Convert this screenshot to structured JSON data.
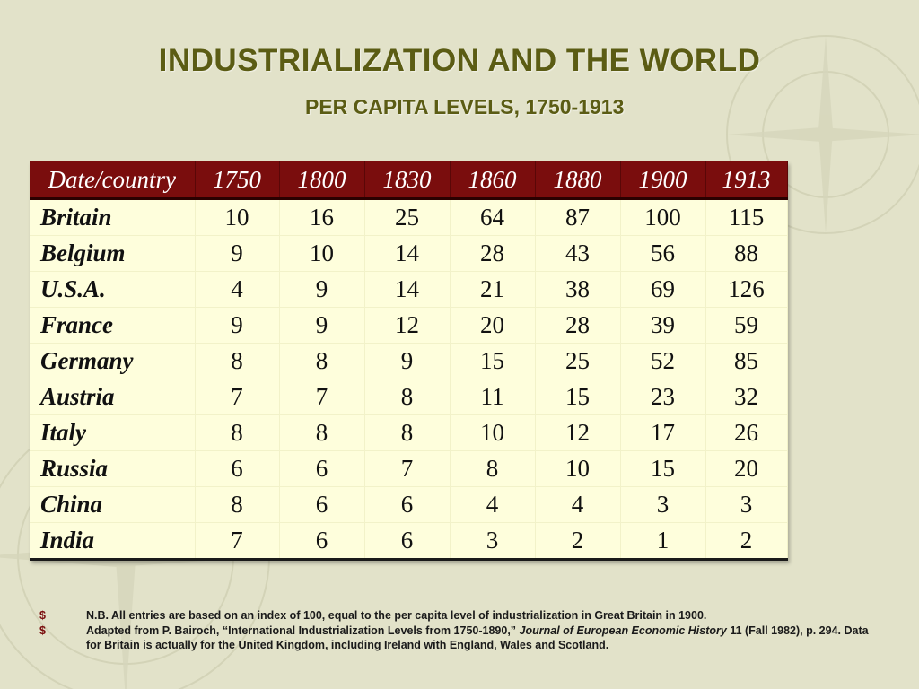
{
  "title": "INDUSTRIALIZATION AND THE WORLD",
  "subtitle": "PER CAPITA LEVELS, 1750-1913",
  "table": {
    "headers": [
      "Date/country",
      "1750",
      "1800",
      "1830",
      "1860",
      "1880",
      "1900",
      "1913"
    ],
    "rows": [
      {
        "country": "Britain",
        "values": [
          "10",
          "16",
          "25",
          "64",
          "87",
          "100",
          "115"
        ]
      },
      {
        "country": "Belgium",
        "values": [
          "9",
          "10",
          "14",
          "28",
          "43",
          "56",
          "88"
        ]
      },
      {
        "country": "U.S.A.",
        "values": [
          "4",
          "9",
          "14",
          "21",
          "38",
          "69",
          "126"
        ]
      },
      {
        "country": "France",
        "values": [
          "9",
          "9",
          "12",
          "20",
          "28",
          "39",
          "59"
        ]
      },
      {
        "country": "Germany",
        "values": [
          "8",
          "8",
          "9",
          "15",
          "25",
          "52",
          "85"
        ]
      },
      {
        "country": "Austria",
        "values": [
          "7",
          "7",
          "8",
          "11",
          "15",
          "23",
          "32"
        ]
      },
      {
        "country": "Italy",
        "values": [
          "8",
          "8",
          "8",
          "10",
          "12",
          "17",
          "26"
        ]
      },
      {
        "country": "Russia",
        "values": [
          "6",
          "6",
          "7",
          "8",
          "10",
          "15",
          "20"
        ]
      },
      {
        "country": "China",
        "values": [
          "8",
          "6",
          "6",
          "4",
          "4",
          "3",
          "3"
        ]
      },
      {
        "country": "India",
        "values": [
          "7",
          "6",
          "6",
          "3",
          "2",
          "1",
          "2"
        ]
      }
    ]
  },
  "notes": [
    {
      "bullet": "$",
      "text": "N.B. All entries are based on an index of 100, equal to the per capita level of industrialization in Great Britain in 1900."
    },
    {
      "bullet": "$",
      "text_before": "Adapted from P. Bairoch, “International Industrialization Levels from 1750-1890,” ",
      "journal": "Journal of European Economic History",
      "text_after": " 11 (Fall 1982), p. 294.  Data for Britain is actually for the United Kingdom, including Ireland with England, Wales and Scotland."
    }
  ],
  "colors": {
    "background": "#e2e2c9",
    "title": "#5b5c14",
    "header_bg": "#7a0d0d",
    "table_bg": "#fefedc"
  }
}
